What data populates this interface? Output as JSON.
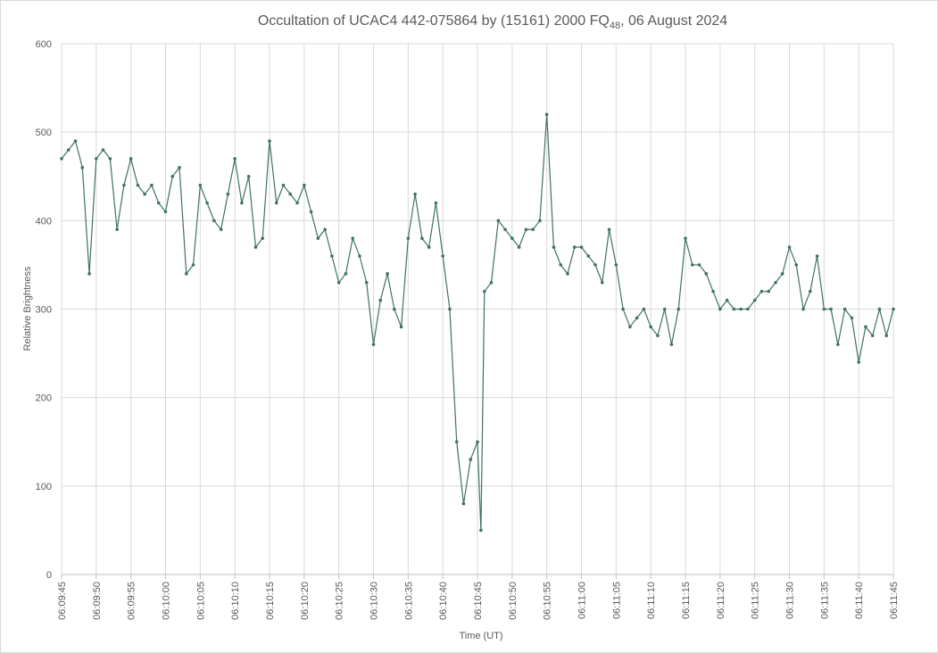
{
  "chart_data": {
    "type": "line",
    "title": "Occultation of UCAC4 442-075864 by (15161) 2000 FQ",
    "title_subscript": "48",
    "title_suffix": ", 06 August 2024",
    "x_label": "Time (UT)",
    "y_label": "Relative Brightness",
    "grid": true,
    "xlim": [
      22185,
      22305
    ],
    "ylim": [
      0,
      600
    ],
    "yticks": [
      0,
      100,
      200,
      300,
      400,
      500,
      600
    ],
    "xticks": [
      {
        "value": 22185,
        "label": "06:09:45"
      },
      {
        "value": 22190,
        "label": "06:09:50"
      },
      {
        "value": 22195,
        "label": "06:09:55"
      },
      {
        "value": 22200,
        "label": "06:10:00"
      },
      {
        "value": 22205,
        "label": "06:10:05"
      },
      {
        "value": 22210,
        "label": "06:10:10"
      },
      {
        "value": 22215,
        "label": "06:10:15"
      },
      {
        "value": 22220,
        "label": "06:10:20"
      },
      {
        "value": 22225,
        "label": "06:10:25"
      },
      {
        "value": 22230,
        "label": "06:10:30"
      },
      {
        "value": 22235,
        "label": "06:10:35"
      },
      {
        "value": 22240,
        "label": "06:10:40"
      },
      {
        "value": 22245,
        "label": "06:10:45"
      },
      {
        "value": 22250,
        "label": "06:10:50"
      },
      {
        "value": 22255,
        "label": "06:10:55"
      },
      {
        "value": 22260,
        "label": "06:11:00"
      },
      {
        "value": 22265,
        "label": "06:11:05"
      },
      {
        "value": 22270,
        "label": "06:11:10"
      },
      {
        "value": 22275,
        "label": "06:11:15"
      },
      {
        "value": 22280,
        "label": "06:11:20"
      },
      {
        "value": 22285,
        "label": "06:11:25"
      },
      {
        "value": 22290,
        "label": "06:11:30"
      },
      {
        "value": 22295,
        "label": "06:11:35"
      },
      {
        "value": 22300,
        "label": "06:11:40"
      },
      {
        "value": 22305,
        "label": "06:11:45"
      }
    ],
    "x": [
      22185,
      22186,
      22187,
      22188,
      22189,
      22190,
      22191,
      22192,
      22193,
      22194,
      22195,
      22196,
      22197,
      22198,
      22199,
      22200,
      22201,
      22202,
      22203,
      22204,
      22205,
      22206,
      22207,
      22208,
      22209,
      22210,
      22211,
      22212,
      22213,
      22214,
      22215,
      22216,
      22217,
      22218,
      22219,
      22220,
      22221,
      22222,
      22223,
      22224,
      22225,
      22226,
      22227,
      22228,
      22229,
      22230,
      22231,
      22232,
      22233,
      22234,
      22235,
      22236,
      22237,
      22238,
      22239,
      22240,
      22241,
      22242,
      22243,
      22244,
      22245,
      22245.5,
      22246,
      22247,
      22248,
      22249,
      22250,
      22251,
      22252,
      22253,
      22254,
      22255,
      22256,
      22257,
      22258,
      22259,
      22260,
      22261,
      22262,
      22263,
      22264,
      22265,
      22266,
      22267,
      22268,
      22269,
      22270,
      22271,
      22272,
      22273,
      22274,
      22275,
      22276,
      22277,
      22278,
      22279,
      22280,
      22281,
      22282,
      22283,
      22284,
      22285,
      22286,
      22287,
      22288,
      22289,
      22290,
      22291,
      22292,
      22293,
      22294,
      22295,
      22296,
      22297,
      22298,
      22299,
      22300,
      22301,
      22302,
      22303,
      22304,
      22305
    ],
    "series": [
      {
        "name": "Relative Brightness",
        "color": "#3f7262",
        "values": [
          470,
          480,
          490,
          460,
          340,
          470,
          480,
          470,
          390,
          440,
          470,
          440,
          430,
          440,
          420,
          410,
          450,
          460,
          340,
          350,
          440,
          420,
          400,
          390,
          430,
          470,
          420,
          450,
          370,
          380,
          490,
          420,
          440,
          430,
          420,
          440,
          410,
          380,
          390,
          360,
          330,
          340,
          380,
          360,
          330,
          260,
          310,
          340,
          300,
          280,
          380,
          430,
          380,
          370,
          420,
          360,
          300,
          150,
          80,
          130,
          150,
          50,
          320,
          330,
          400,
          390,
          380,
          370,
          390,
          390,
          400,
          520,
          370,
          350,
          340,
          370,
          370,
          360,
          350,
          330,
          390,
          350,
          300,
          280,
          290,
          300,
          280,
          270,
          300,
          260,
          300,
          380,
          350,
          350,
          340,
          320,
          300,
          310,
          300,
          300,
          300,
          310,
          320,
          320,
          330,
          340,
          370,
          350,
          300,
          320,
          360,
          300,
          300,
          260,
          300,
          290,
          240,
          280,
          270,
          300,
          270,
          300
        ]
      }
    ]
  }
}
